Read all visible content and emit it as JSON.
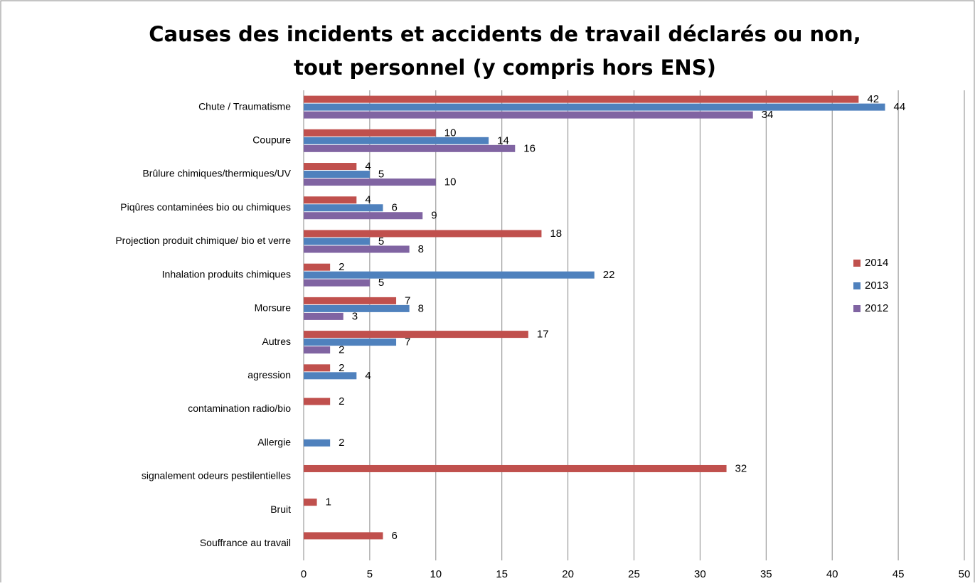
{
  "chart_data": {
    "type": "hbar",
    "title": [
      "Causes des incidents et accidents de travail déclarés  ou non,",
      "tout personnel (y compris hors ENS)"
    ],
    "categories": [
      "Chute / Traumatisme",
      "Coupure",
      "Brûlure chimiques/thermiques/UV",
      "Piqûres contaminées bio ou chimiques",
      "Projection produit chimique/ bio et verre",
      "Inhalation produits chimiques",
      "Morsure",
      "Autres",
      "agression",
      "contamination radio/bio",
      "Allergie",
      "signalement odeurs pestilentielles",
      "Bruit",
      "Souffrance au travail"
    ],
    "series": [
      {
        "name": "2014",
        "color": "#c0504d",
        "values": [
          42,
          10,
          4,
          4,
          18,
          2,
          7,
          17,
          2,
          2,
          null,
          32,
          1,
          6
        ]
      },
      {
        "name": "2013",
        "color": "#4f81bd",
        "values": [
          44,
          14,
          5,
          6,
          5,
          22,
          8,
          7,
          4,
          null,
          2,
          null,
          null,
          null
        ]
      },
      {
        "name": "2012",
        "color": "#8064a2",
        "values": [
          34,
          16,
          10,
          9,
          8,
          5,
          3,
          2,
          null,
          null,
          null,
          null,
          null,
          null
        ]
      }
    ],
    "xlim": [
      0,
      50
    ],
    "xticks": [
      0,
      5,
      10,
      15,
      20,
      25,
      30,
      35,
      40,
      45,
      50
    ],
    "grid": true,
    "legend": "right"
  }
}
